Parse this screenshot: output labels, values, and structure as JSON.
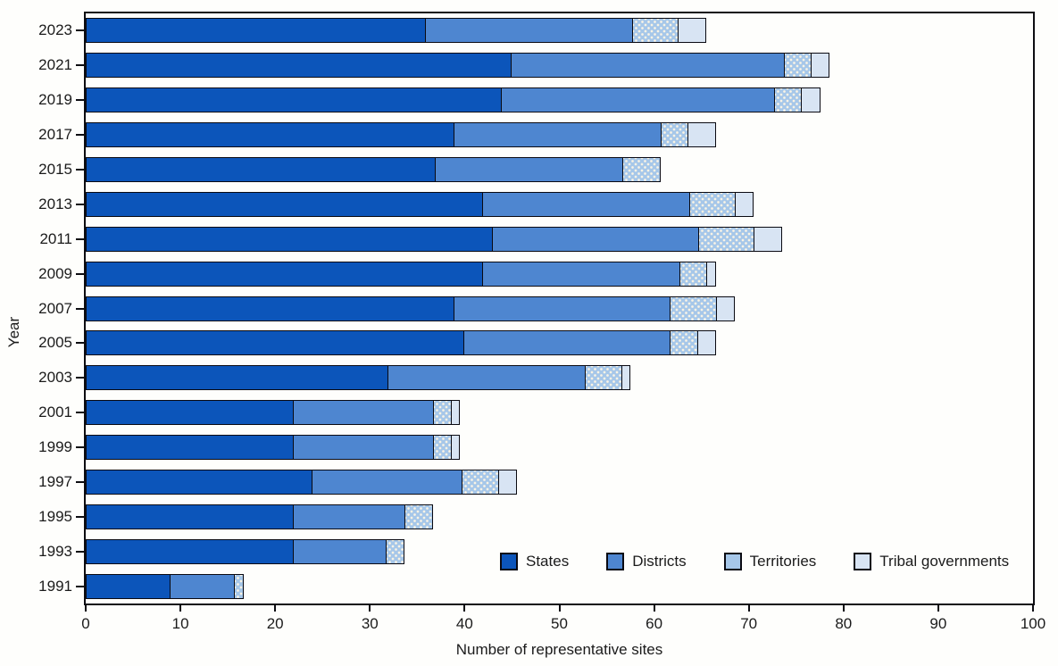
{
  "figure": {
    "x_axis_title": "Number of representative sites",
    "y_axis_title": "Year"
  },
  "chart_data": {
    "type": "bar",
    "orientation": "horizontal",
    "stacked": true,
    "title": "",
    "xlabel": "Number of representative sites",
    "ylabel": "Year",
    "xlim": [
      0,
      100
    ],
    "xticks": [
      0,
      10,
      20,
      30,
      40,
      50,
      60,
      70,
      80,
      90,
      100
    ],
    "grid": false,
    "legend_position": "bottom-inside",
    "categories": [
      "2023",
      "2021",
      "2019",
      "2017",
      "2015",
      "2013",
      "2011",
      "2009",
      "2007",
      "2005",
      "2003",
      "2001",
      "1999",
      "1997",
      "1995",
      "1993",
      "1991"
    ],
    "series": [
      {
        "name": "States",
        "color": "#0c55ba",
        "pattern": "solid",
        "values": [
          36,
          45,
          44,
          39,
          37,
          42,
          43,
          42,
          39,
          40,
          32,
          22,
          22,
          24,
          22,
          22,
          9
        ]
      },
      {
        "name": "Districts",
        "color": "#4e86d0",
        "pattern": "solid",
        "values": [
          22,
          29,
          29,
          22,
          20,
          22,
          22,
          21,
          23,
          22,
          21,
          15,
          15,
          16,
          12,
          10,
          7
        ]
      },
      {
        "name": "Territories",
        "color": "#a6c7e9",
        "pattern": "dots",
        "values": [
          5,
          3,
          3,
          3,
          4,
          5,
          6,
          3,
          5,
          3,
          4,
          2,
          2,
          4,
          3,
          2,
          1
        ]
      },
      {
        "name": "Tribal governments",
        "color": "#d8e4f3",
        "pattern": "solid",
        "values": [
          3,
          2,
          2,
          3,
          0,
          2,
          3,
          1,
          2,
          2,
          1,
          1,
          1,
          2,
          0,
          0,
          0
        ]
      }
    ],
    "totals": [
      66,
      79,
      78,
      67,
      61,
      71,
      74,
      67,
      69,
      67,
      58,
      40,
      40,
      46,
      37,
      34,
      17
    ]
  }
}
